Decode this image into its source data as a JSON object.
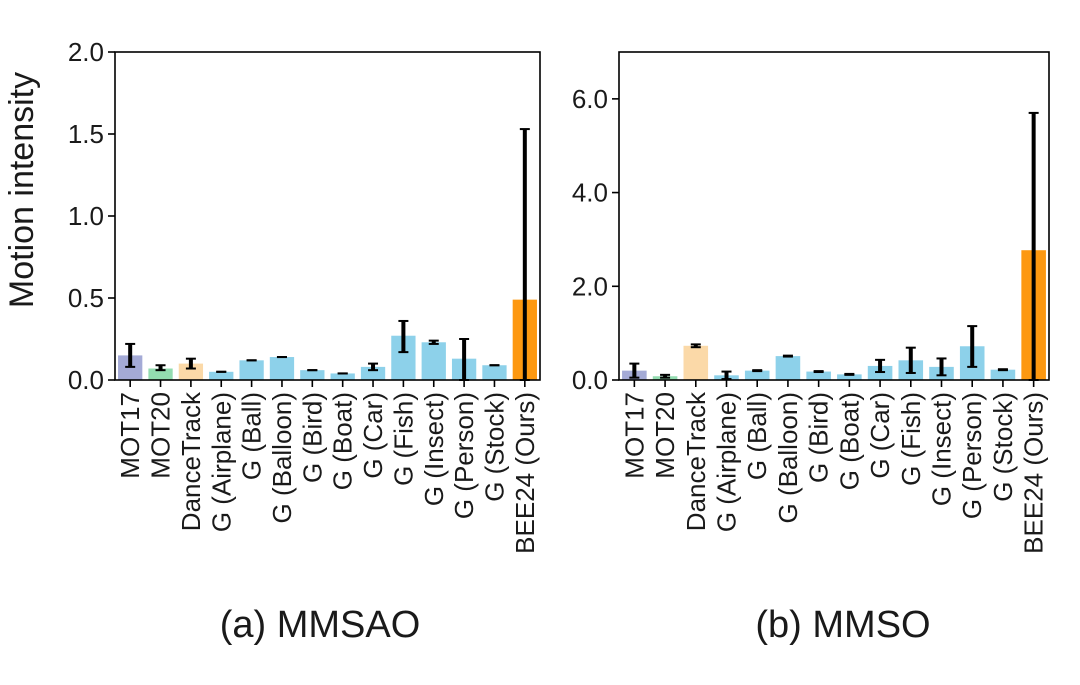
{
  "figure": {
    "ylabel": "Motion intensity"
  },
  "colors": {
    "mot17": "#a4aad6",
    "mot20": "#93dcb0",
    "dancetrack": "#fbd9a8",
    "g": "#8dd1ea",
    "ours": "#fd9810",
    "errorbar": "#000000",
    "axis": "#000000"
  },
  "chart_data": [
    {
      "type": "bar",
      "panel_label": "(a) MMSAO",
      "ylabel": "Motion intensity",
      "ylim": [
        0,
        2.0
      ],
      "yticks": [
        0.0,
        0.5,
        1.0,
        1.5,
        2.0
      ],
      "ytick_labels": [
        "0.0",
        "0.5",
        "1.0",
        "1.5",
        "2.0"
      ],
      "grid": false,
      "categories": [
        "MOT17",
        "MOT20",
        "DanceTrack",
        "G (Airplane)",
        "G (Ball)",
        "G (Balloon)",
        "G (Bird)",
        "G (Boat)",
        "G (Car)",
        "G (Fish)",
        "G (Insect)",
        "G (Person)",
        "G (Stock)",
        "BEE24 (Ours)"
      ],
      "values": [
        0.15,
        0.07,
        0.1,
        0.05,
        0.12,
        0.14,
        0.06,
        0.04,
        0.08,
        0.27,
        0.23,
        0.13,
        0.09,
        0.49
      ],
      "error_low": [
        0.08,
        0.06,
        0.07,
        0.05,
        0.12,
        0.14,
        0.06,
        0.04,
        0.06,
        0.17,
        0.22,
        0.0,
        0.09,
        0.0
      ],
      "error_high": [
        0.22,
        0.09,
        0.13,
        0.05,
        0.12,
        0.14,
        0.06,
        0.04,
        0.1,
        0.36,
        0.24,
        0.25,
        0.09,
        1.53
      ],
      "bar_colors": [
        "mot17",
        "mot20",
        "dancetrack",
        "g",
        "g",
        "g",
        "g",
        "g",
        "g",
        "g",
        "g",
        "g",
        "g",
        "ours"
      ]
    },
    {
      "type": "bar",
      "panel_label": "(b) MMSO",
      "ylim": [
        0,
        7.0
      ],
      "yticks": [
        0.0,
        2.0,
        4.0,
        6.0
      ],
      "ytick_labels": [
        "0.0",
        "2.0",
        "4.0",
        "6.0"
      ],
      "grid": false,
      "categories": [
        "MOT17",
        "MOT20",
        "DanceTrack",
        "G (Airplane)",
        "G (Ball)",
        "G (Balloon)",
        "G (Bird)",
        "G (Boat)",
        "G (Car)",
        "G (Fish)",
        "G (Insect)",
        "G (Person)",
        "G (Stock)",
        "BEE24 (Ours)"
      ],
      "values": [
        0.2,
        0.08,
        0.73,
        0.1,
        0.2,
        0.51,
        0.18,
        0.12,
        0.3,
        0.42,
        0.28,
        0.72,
        0.22,
        2.77
      ],
      "error_low": [
        0.05,
        0.05,
        0.7,
        0.02,
        0.19,
        0.5,
        0.17,
        0.11,
        0.17,
        0.15,
        0.1,
        0.28,
        0.21,
        0.0
      ],
      "error_high": [
        0.35,
        0.11,
        0.76,
        0.18,
        0.21,
        0.52,
        0.19,
        0.13,
        0.43,
        0.69,
        0.46,
        1.15,
        0.23,
        5.7
      ],
      "bar_colors": [
        "mot17",
        "mot20",
        "dancetrack",
        "g",
        "g",
        "g",
        "g",
        "g",
        "g",
        "g",
        "g",
        "g",
        "g",
        "ours"
      ]
    }
  ]
}
